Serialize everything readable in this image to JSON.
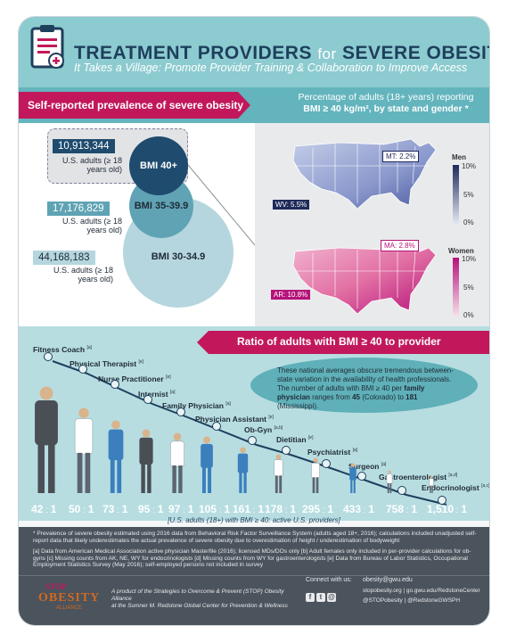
{
  "header": {
    "title_part1": "TREATMENT PROVIDERS",
    "title_for": "for",
    "title_part2": "SEVERE OBESITY",
    "subtitle": "It Takes a Village: Promote Provider Training & Collaboration to Improve Access"
  },
  "prevalence": {
    "section_label": "Self-reported prevalence of severe obesity",
    "groups": [
      {
        "label": "BMI 40+",
        "count": "10,913,344",
        "count_label": "U.S. adults (≥ 18 years old)"
      },
      {
        "label": "BMI 35-39.9",
        "count": "17,176,829",
        "count_label": "U.S. adults (≥ 18 years old)"
      },
      {
        "label": "BMI 30-34.9",
        "count": "44,168,183",
        "count_label": "U.S. adults (≥ 18 years old)"
      }
    ]
  },
  "maps": {
    "heading_line1": "Percentage of adults (18+ years) reporting",
    "heading_line2": "BMI ≥ 40 kg/m², by state and gender *",
    "men": {
      "title": "Men",
      "ticks": [
        "10%",
        "5%",
        "0%"
      ],
      "color_high": "#1e2a5a",
      "color_low": "#e4e8f5",
      "callout_high": "MT: 2.2%",
      "callout_low": "WV: 5.5%"
    },
    "women": {
      "title": "Women",
      "ticks": [
        "10%",
        "5%",
        "0%"
      ],
      "color_high": "#b5127a",
      "color_low": "#f7e1ec",
      "callout_high": "MA: 2.8%",
      "callout_low": "AR: 10.8%"
    }
  },
  "ratio": {
    "section_label": "Ratio of adults with BMI ≥ 40 to provider",
    "note_pre": "These national averages obscure tremendous between-state variation in the availability of health professionals. The number of adults with BMI ≥ 40 per",
    "note_bold": "family physician",
    "note_mid": "ranges from",
    "note_low": "45",
    "note_low_place": "(Colorado) to",
    "note_high": "181",
    "note_high_place": "(Mississippi).",
    "providers": [
      {
        "name": "Fitness Coach",
        "ref": "[a]",
        "ratio": "42",
        "suffix": "1"
      },
      {
        "name": "Physical Therapist",
        "ref": "[e]",
        "ratio": "50",
        "suffix": "1"
      },
      {
        "name": "Nurse Practitioner",
        "ref": "[e]",
        "ratio": "73",
        "suffix": "1"
      },
      {
        "name": "Internist",
        "ref": "[a]",
        "ratio": "95",
        "suffix": "1"
      },
      {
        "name": "Family Physician",
        "ref": "[a]",
        "ratio": "97",
        "suffix": "1"
      },
      {
        "name": "Physician Assistant",
        "ref": "[e]",
        "ratio": "105",
        "suffix": "1"
      },
      {
        "name": "Ob-Gyn",
        "ref": "[a,b]",
        "ratio": "161",
        "suffix": "1"
      },
      {
        "name": "Dietitian",
        "ref": "[e]",
        "ratio": "178",
        "suffix": "1"
      },
      {
        "name": "Psychiatrist",
        "ref": "[a]",
        "ratio": "295",
        "suffix": "1"
      },
      {
        "name": "Surgeon",
        "ref": "[a]",
        "ratio": "433",
        "suffix": "1"
      },
      {
        "name": "Gastroenterologist",
        "ref": "[a,d]",
        "ratio": "758",
        "suffix": "1"
      },
      {
        "name": "Endocrinologist",
        "ref": "[a,c]",
        "ratio": "1,510",
        "suffix": "1"
      }
    ],
    "ratio_note": "[U.S. adults (18+) with BMI ≥ 40: active U.S. providers]",
    "figure_colors": {
      "dark": "#4a4e55",
      "white": "#ffffff",
      "blue": "#3b7fbd"
    }
  },
  "footnotes": {
    "star": "* Prevalence of severe obesity estimated using 2016 data from Behavioral Risk Factor Surveillance System (adults aged 18+, 2016); calculations included unadjusted self-report data that likely underestimates the actual prevalence of severe obesity due to overestimation of height / underestimation of bodyweight",
    "sources": "[a] Data from American Medical Association active physician Masterfile (2016); licensed MDs/DOs only [b] Adult females only included in per-provider calculations for ob-gyns [c] Missing counts from AK, NE, WY for endocrinologists [d] Missing counts from WY for gastroenterologists [e] Data from Bureau of Labor Statistics, Occupational Employment Statistics Survey (May 2016); self-employed persons not included in survey"
  },
  "footer": {
    "logo_top": "STOP",
    "logo_main": "OBESITY",
    "logo_sub": "ALLIANCE",
    "product_line1": "A product of the Strategies to Overcome & Prevent (STOP) Obesity Alliance",
    "product_line2": "at the Sumner M. Redstone Global Center for Prevention & Wellness",
    "connect_label": "Connect with us:",
    "email": "obesity@gwu.edu",
    "web": "stopobesity.org | go.gwu.edu/RedstoneCenter",
    "twitter": "@STOPobesity | @RedstoneGWSPH",
    "icons": [
      "facebook-icon",
      "twitter-icon",
      "email-icon"
    ]
  }
}
